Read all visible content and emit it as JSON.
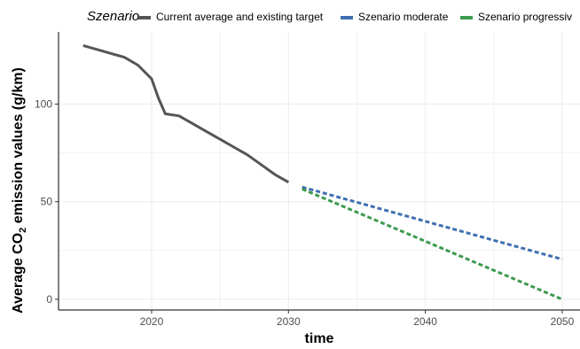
{
  "chart_data": {
    "type": "line",
    "title": "",
    "xlabel": "time",
    "ylabel": {
      "prefix": "Average CO",
      "subscript": "2",
      "suffix": " emission values (g/km)"
    },
    "xlim": [
      2013.2,
      2051.3
    ],
    "ylim": [
      -5.5,
      137
    ],
    "xticks": [
      2020,
      2030,
      2040,
      2050
    ],
    "yticks": [
      0,
      50,
      100
    ],
    "grid": true,
    "legend": {
      "title": "Szenario",
      "position": "top"
    },
    "series": [
      {
        "name": "Current average and existing target",
        "color": "#555555",
        "dash": "solid",
        "x": [
          2015,
          2016,
          2017,
          2018,
          2019,
          2020,
          2020.5,
          2021,
          2022,
          2023,
          2024,
          2025,
          2026,
          2027,
          2028,
          2029,
          2030
        ],
        "y": [
          130,
          128,
          126,
          124,
          120,
          113,
          103,
          95,
          94,
          90,
          86,
          82,
          78,
          74,
          69,
          64,
          60
        ]
      },
      {
        "name": "Szenario moderate",
        "color": "#3f6fb0",
        "dash": "dashed",
        "x": [
          2031,
          2050
        ],
        "y": [
          57.5,
          20.5
        ]
      },
      {
        "name": "Szenario progressiv",
        "color": "#3d9a4e",
        "dash": "dashed",
        "x": [
          2031,
          2050
        ],
        "y": [
          56.5,
          0
        ]
      }
    ]
  }
}
